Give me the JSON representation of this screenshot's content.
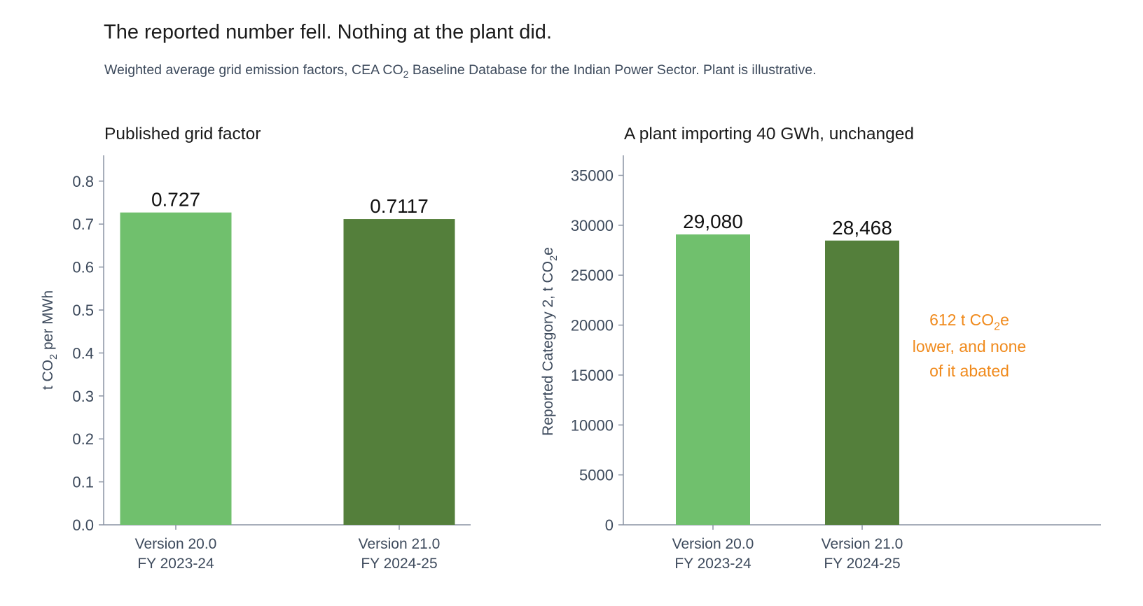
{
  "header": {
    "title": "The reported number fell. Nothing at the plant did.",
    "subtitle_pre": "Weighted average grid emission factors, CEA CO",
    "subtitle_sub": "2",
    "subtitle_post": " Baseline Database for the Indian Power Sector. Plant is illustrative."
  },
  "colors": {
    "light_green": "#70c06d",
    "dark_green": "#547f3b",
    "annotation": "#f08a1c",
    "axis": "#8a93a3"
  },
  "chart_data": [
    {
      "type": "bar",
      "title": "Published grid factor",
      "categories": [
        [
          "Version 20.0",
          "FY 2023-24"
        ],
        [
          "Version 21.0",
          "FY 2024-25"
        ]
      ],
      "values": [
        0.727,
        0.7117
      ],
      "value_labels": [
        "0.727",
        "0.7117"
      ],
      "ylabel": {
        "pre": "t CO",
        "sub": "2",
        "post": " per MWh"
      },
      "ylim": [
        0,
        0.86
      ],
      "yticks": [
        0,
        0.1,
        0.2,
        0.3,
        0.4,
        0.5,
        0.6,
        0.7,
        0.8
      ],
      "ytick_labels": [
        "0.0",
        "0.1",
        "0.2",
        "0.3",
        "0.4",
        "0.5",
        "0.6",
        "0.7",
        "0.8"
      ],
      "grid": false,
      "bar_colors": [
        "#70c06d",
        "#547f3b"
      ]
    },
    {
      "type": "bar",
      "title": "A plant importing 40 GWh, unchanged",
      "categories": [
        [
          "Version 20.0",
          "FY 2023-24"
        ],
        [
          "Version 21.0",
          "FY 2024-25"
        ]
      ],
      "values": [
        29080,
        28468
      ],
      "value_labels": [
        "29,080",
        "28,468"
      ],
      "ylabel": {
        "pre": "Reported Category 2, t CO",
        "sub": "2",
        "post": "e"
      },
      "ylim": [
        0,
        37000
      ],
      "yticks": [
        0,
        5000,
        10000,
        15000,
        20000,
        25000,
        30000,
        35000
      ],
      "ytick_labels": [
        "0",
        "5000",
        "10000",
        "15000",
        "20000",
        "25000",
        "30000",
        "35000"
      ],
      "grid": false,
      "bar_colors": [
        "#70c06d",
        "#547f3b"
      ],
      "annotation": [
        {
          "pre": "612 t CO",
          "sub": "2",
          "post": "e"
        },
        {
          "pre": "lower, and none",
          "sub": "",
          "post": ""
        },
        {
          "pre": "of it abated",
          "sub": "",
          "post": ""
        }
      ]
    }
  ]
}
